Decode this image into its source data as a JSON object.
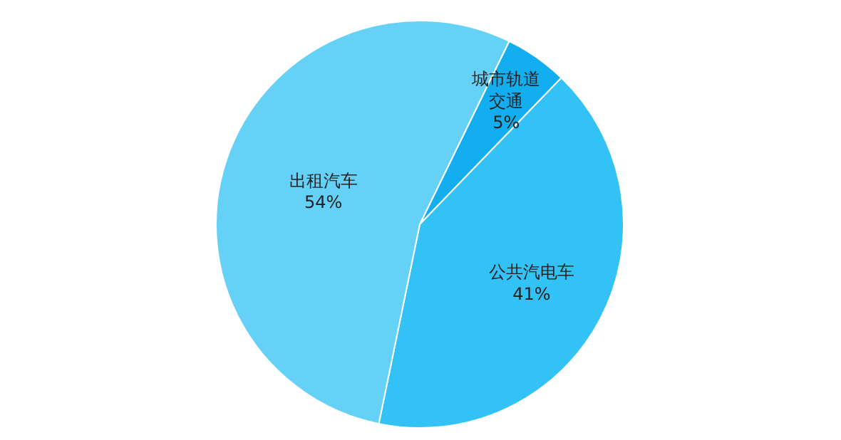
{
  "chart_data": {
    "type": "pie",
    "categories": [
      "城市轨道交通",
      "公共汽电车",
      "出租汽车"
    ],
    "values": [
      5,
      41,
      54
    ],
    "colors": [
      "#13aef0",
      "#33c2f5",
      "#66d1f7"
    ],
    "value_labels": [
      "5%",
      "41%",
      "54%"
    ]
  }
}
